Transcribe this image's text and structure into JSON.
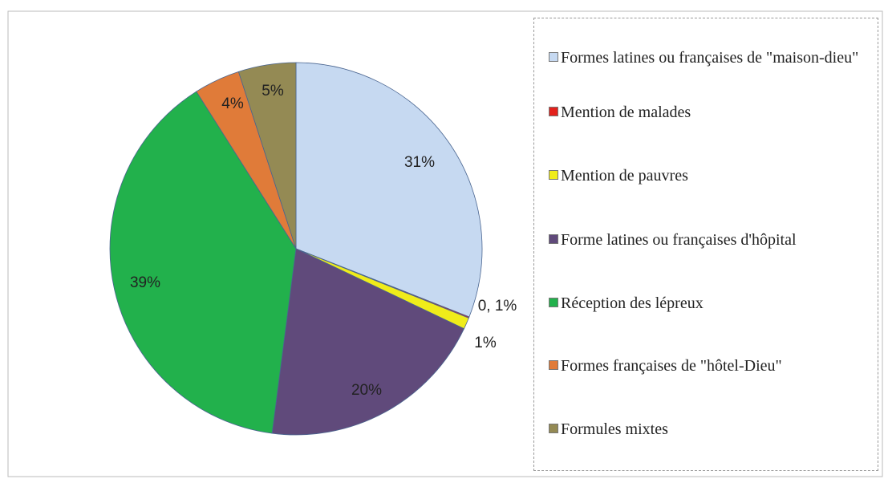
{
  "chart_data": {
    "type": "pie",
    "categories": [
      "Formes latines ou françaises de \"maison-dieu\"",
      "Mention de malades",
      "Mention de pauvres",
      "Forme latines ou françaises d'hôpital",
      "Réception des lépreux",
      "Formes françaises de \"hôtel-Dieu\"",
      "Formules mixtes"
    ],
    "values": [
      31,
      0.1,
      1,
      20,
      39,
      4,
      5
    ],
    "value_labels": [
      "31%",
      "0, 1%",
      "1%",
      "20%",
      "39%",
      "4%",
      "5%"
    ],
    "colors": [
      "#c6d9f1",
      "#e3211c",
      "#f0ec1a",
      "#604a7b",
      "#22b14c",
      "#e07b39",
      "#948a54"
    ],
    "legend": "right"
  }
}
